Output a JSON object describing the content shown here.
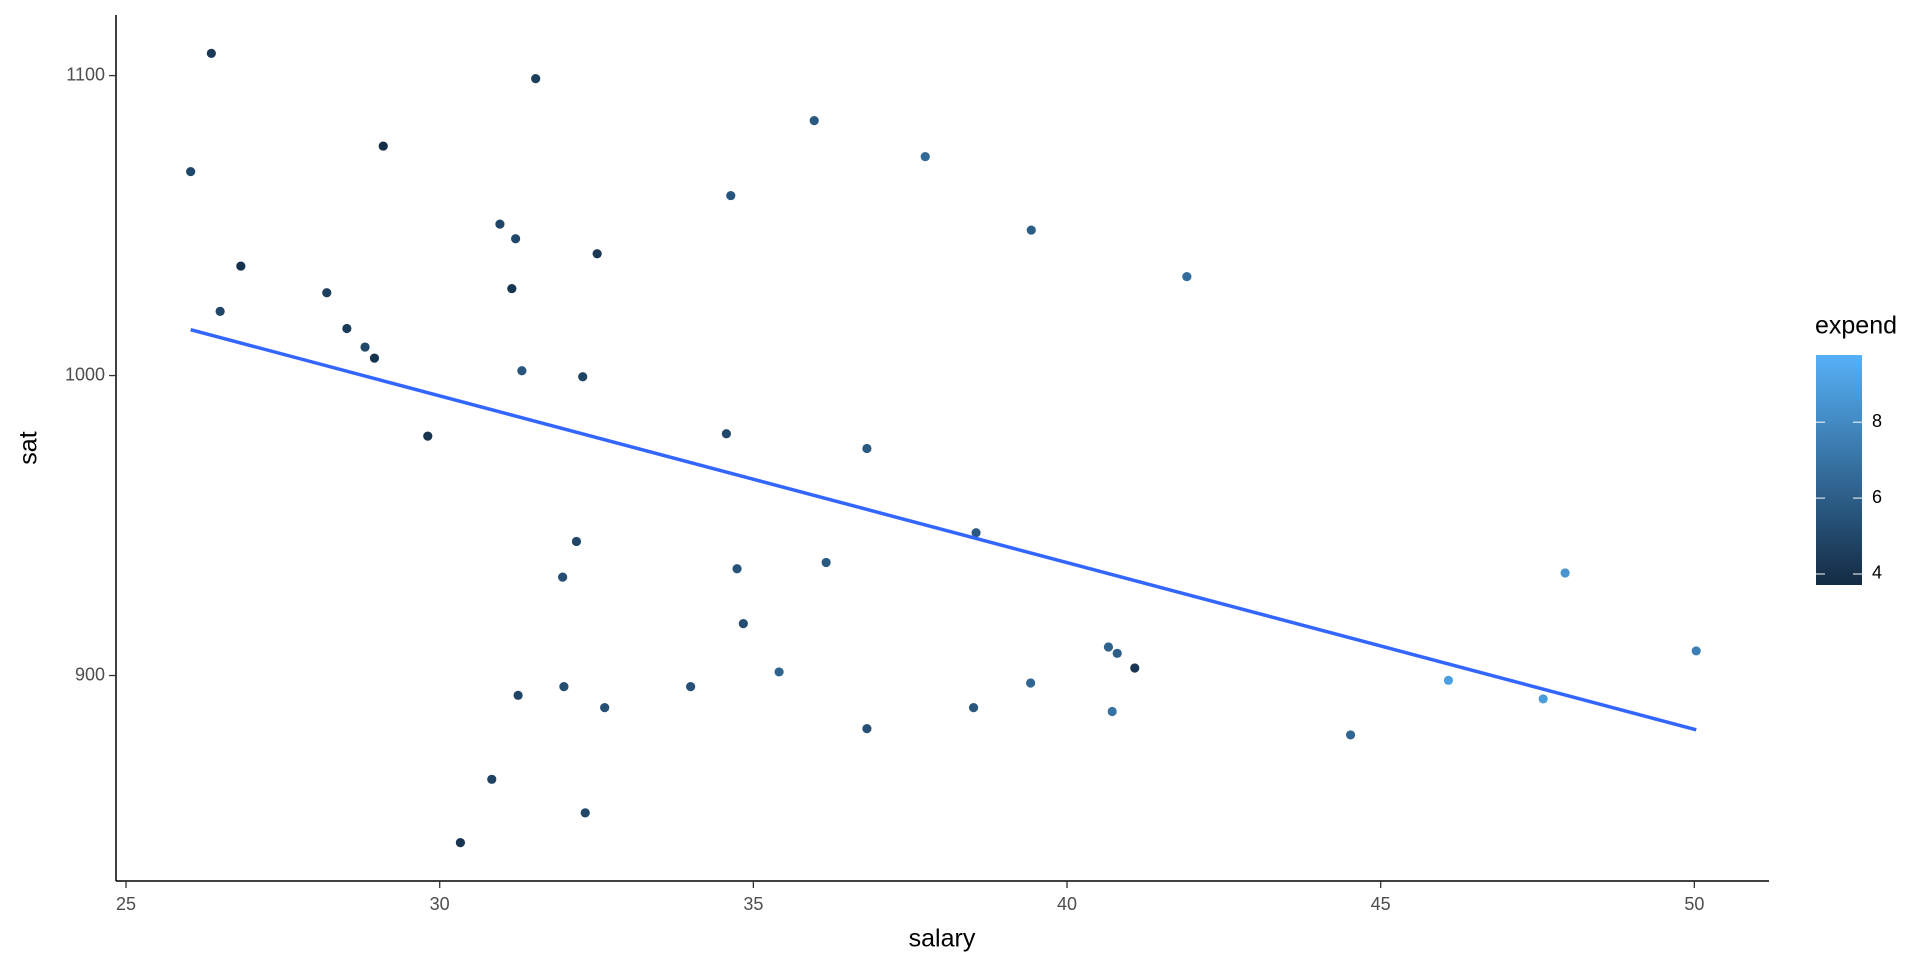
{
  "chart_data": {
    "type": "scatter",
    "x_label": "salary",
    "y_label": "sat",
    "xlim": [
      24.84,
      51.19
    ],
    "ylim": [
      831.5,
      1120.2
    ],
    "xticks": [
      25,
      30,
      35,
      40,
      45,
      50
    ],
    "yticks": [
      900,
      1000,
      1100
    ],
    "x": [
      26.36,
      26.03,
      31.53,
      29.1,
      35.97,
      37.74,
      34.64,
      30.96,
      31.21,
      39.43,
      26.83,
      32.51,
      31.15,
      28.2,
      41.91,
      26.5,
      28.52,
      28.81,
      28.96,
      31.31,
      32.28,
      29.81,
      34.57,
      36.81,
      38.55,
      32.18,
      31.96,
      34.74,
      36.16,
      47.94,
      34.84,
      40.66,
      40.8,
      50.03,
      41.08,
      35.41,
      46.08,
      31.98,
      34.0,
      39.42,
      31.25,
      47.59,
      32.63,
      38.51,
      40.72,
      36.81,
      44.52,
      30.83,
      32.32,
      30.33
    ],
    "y": [
      1107.4,
      1068,
      1099,
      1076.5,
      1085,
      1073,
      1060,
      1050.5,
      1045.6,
      1048.5,
      1036.5,
      1040.6,
      1029,
      1027.6,
      1033,
      1021.4,
      1015.7,
      1009.5,
      1005.8,
      1001.6,
      999.6,
      979.8,
      980.6,
      975.7,
      947.6,
      944.7,
      932.8,
      935.6,
      937.7,
      934.2,
      917.3,
      909.5,
      907.4,
      908.2,
      902.5,
      901.2,
      898.4,
      896.3,
      896.3,
      897.5,
      893.4,
      892.2,
      889.3,
      889.3,
      888.0,
      882.3,
      880.2,
      865.4,
      854.2,
      844.3
    ],
    "expend": [
      4.4,
      5.0,
      4.6,
      3.9,
      5.8,
      6.5,
      5.6,
      4.9,
      5.0,
      6.0,
      4.0,
      4.3,
      4.2,
      4.6,
      6.7,
      5.0,
      4.5,
      5.0,
      4.1,
      5.6,
      4.8,
      4.1,
      5.0,
      5.8,
      5.8,
      5.0,
      5.3,
      5.5,
      5.8,
      8.5,
      5.3,
      6.2,
      6.0,
      7.5,
      4.2,
      6.3,
      9.0,
      5.3,
      5.4,
      6.4,
      4.9,
      8.8,
      5.4,
      5.7,
      6.9,
      5.4,
      6.4,
      4.8,
      5.0,
      4.2
    ],
    "fit": {
      "x": [
        26.03,
        50.03
      ],
      "y": [
        1015.3,
        881.9
      ],
      "color": "#3366ff"
    },
    "legend_title": "expend",
    "colorlim": [
      3.71,
      9.77
    ],
    "colorticks": [
      4,
      6,
      8
    ],
    "colors": [
      "#132B43",
      "#56B1F7"
    ]
  }
}
